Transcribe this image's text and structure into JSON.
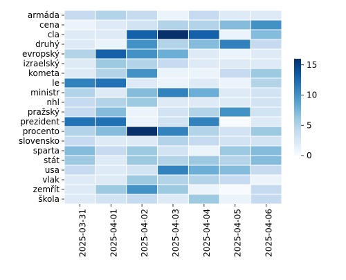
{
  "chart_data": {
    "type": "heatmap",
    "title": "",
    "xlabel": "",
    "ylabel": "",
    "x_categories": [
      "2025-03-31",
      "2025-04-01",
      "2025-04-02",
      "2025-04-03",
      "2025-04-04",
      "2025-04-05",
      "2025-04-06"
    ],
    "y_categories": [
      "armáda",
      "cena",
      "cla",
      "druhý",
      "evropský",
      "izraelský",
      "kometa",
      "le",
      "ministr",
      "nhl",
      "pražský",
      "prezident",
      "procento",
      "slovensko",
      "sparta",
      "stát",
      "usa",
      "vlak",
      "zemřít",
      "škola"
    ],
    "values": [
      [
        4,
        5,
        4,
        1,
        4,
        2,
        2
      ],
      [
        1,
        2,
        3,
        5,
        5,
        7,
        10
      ],
      [
        2,
        2,
        13,
        16,
        13,
        1,
        7
      ],
      [
        2,
        1,
        10,
        5,
        7,
        11,
        4
      ],
      [
        5,
        13,
        10,
        8,
        2,
        1,
        2
      ],
      [
        2,
        6,
        5,
        4,
        2,
        2,
        2
      ],
      [
        2,
        5,
        10,
        1,
        1,
        4,
        6
      ],
      [
        11,
        12,
        2,
        1,
        2,
        1,
        5
      ],
      [
        5,
        2,
        7,
        11,
        8,
        2,
        3
      ],
      [
        4,
        5,
        6,
        2,
        2,
        2,
        3
      ],
      [
        4,
        7,
        1,
        3,
        5,
        10,
        3
      ],
      [
        12,
        12,
        1,
        3,
        11,
        0,
        2
      ],
      [
        5,
        7,
        16,
        11,
        5,
        3,
        6
      ],
      [
        4,
        2,
        2,
        5,
        4,
        3,
        3
      ],
      [
        7,
        4,
        6,
        3,
        1,
        6,
        7
      ],
      [
        6,
        2,
        6,
        5,
        6,
        5,
        7
      ],
      [
        4,
        2,
        3,
        11,
        8,
        7,
        4
      ],
      [
        2,
        2,
        6,
        5,
        5,
        4,
        1
      ],
      [
        2,
        6,
        10,
        6,
        1,
        0,
        4
      ],
      [
        2,
        3,
        4,
        2,
        6,
        1,
        4
      ]
    ],
    "colorbar": {
      "min": 0,
      "max": 16,
      "ticks": [
        0,
        5,
        10,
        15
      ]
    },
    "colormap": [
      "#f7fbff",
      "#deebf7",
      "#c6dbef",
      "#9ecae1",
      "#6baed6",
      "#4292c6",
      "#2171b5",
      "#08519c",
      "#08306b"
    ],
    "cell_border_color": "#ffffff"
  }
}
